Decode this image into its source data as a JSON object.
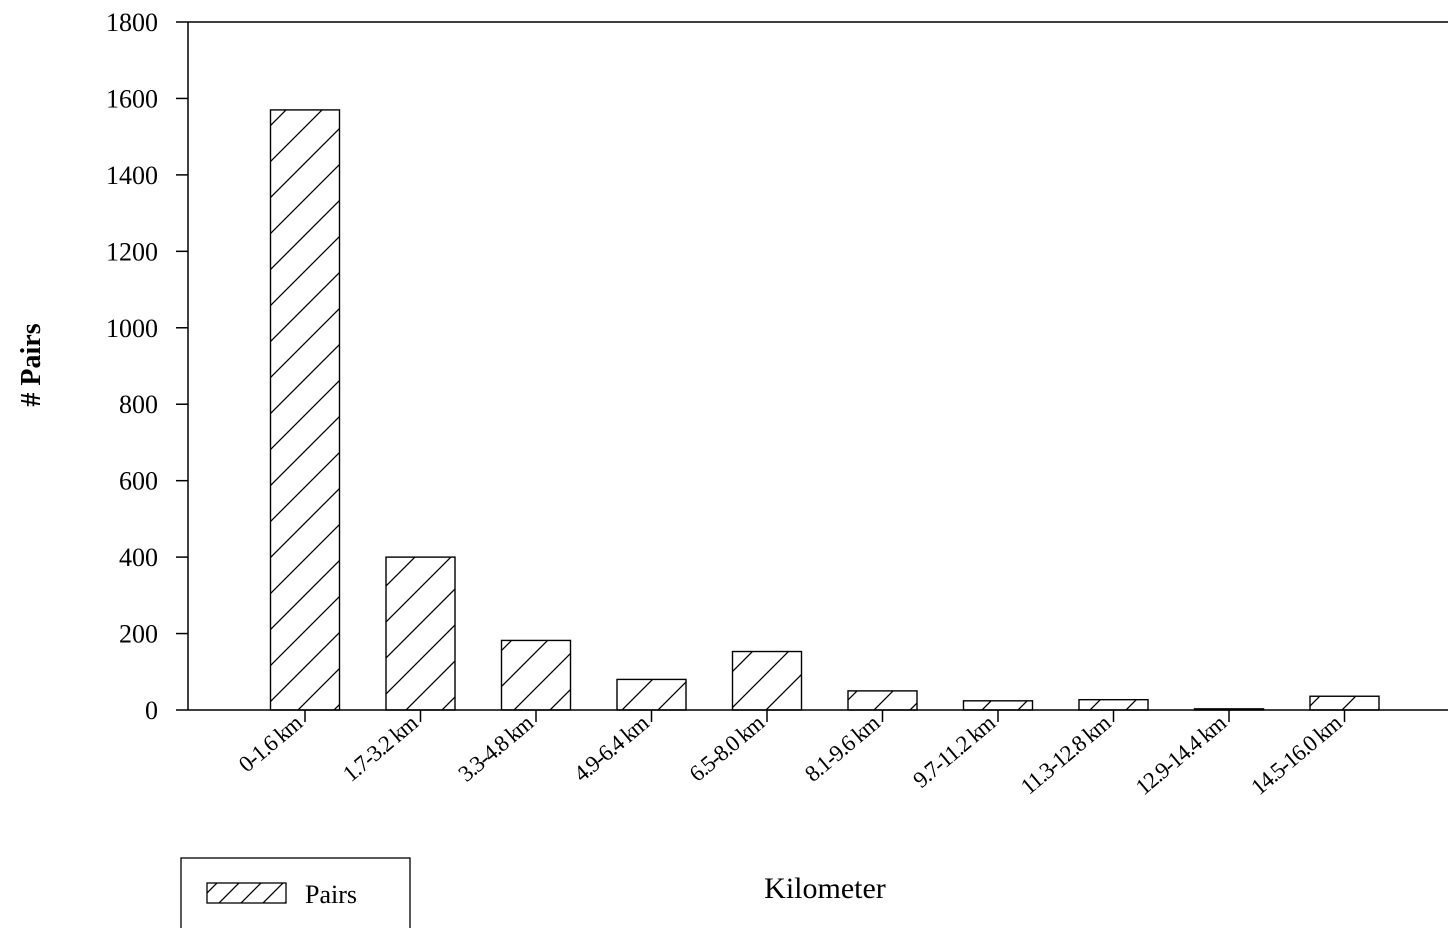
{
  "chart_data": {
    "type": "bar",
    "categories": [
      "0-1.6 km",
      "1.7-3.2 km",
      "3.3-4.8 km",
      "4.9-6.4 km",
      "6.5-8.0 km",
      "8.1-9.6 km",
      "9.7-11.2 km",
      "11.3-12.8 km",
      "12.9-14.4 km",
      "14.5-16.0 km"
    ],
    "series": [
      {
        "name": "Pairs",
        "values": [
          1570,
          400,
          182,
          80,
          153,
          50,
          24,
          27,
          3,
          36
        ]
      }
    ],
    "xlabel": "Kilometer",
    "ylabel": "# Pairs",
    "ylim": [
      0,
      1800
    ],
    "yticks": [
      0,
      200,
      400,
      600,
      800,
      1000,
      1200,
      1400,
      1600,
      1800
    ],
    "grid": false,
    "legend_position": "bottom-left",
    "bar_pattern": "diagonal-hatch",
    "colors": {
      "bar_fill": "#ffffff",
      "bar_stroke": "#000000",
      "hatch": "#000000"
    }
  }
}
